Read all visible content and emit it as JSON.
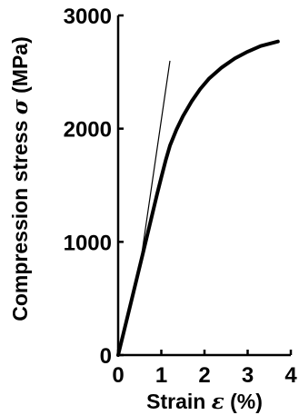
{
  "chart_data": {
    "type": "line",
    "xlabel": "Strain",
    "xsymbol": "ε",
    "xunit": "(%)",
    "ylabel": "Compression stress",
    "ysymbol": "σ",
    "yunit": "(MPa)",
    "xlim": [
      0,
      4
    ],
    "ylim": [
      0,
      3000
    ],
    "xticks": [
      "0",
      "1",
      "2",
      "3",
      "4"
    ],
    "yticks": [
      "0",
      "1000",
      "2000",
      "3000"
    ],
    "grid": false,
    "series": [
      {
        "style": "thick",
        "x": [
          0,
          0.3,
          0.6,
          0.9,
          1.0,
          1.1,
          1.2,
          1.35,
          1.5,
          1.7,
          1.9,
          2.1,
          2.4,
          2.7,
          3.0,
          3.3,
          3.7
        ],
        "y": [
          0,
          470,
          940,
          1420,
          1570,
          1720,
          1850,
          1990,
          2110,
          2240,
          2350,
          2440,
          2540,
          2620,
          2680,
          2730,
          2770
        ]
      },
      {
        "style": "thin",
        "x": [
          0.55,
          1.2
        ],
        "y": [
          900,
          2600
        ]
      }
    ]
  }
}
